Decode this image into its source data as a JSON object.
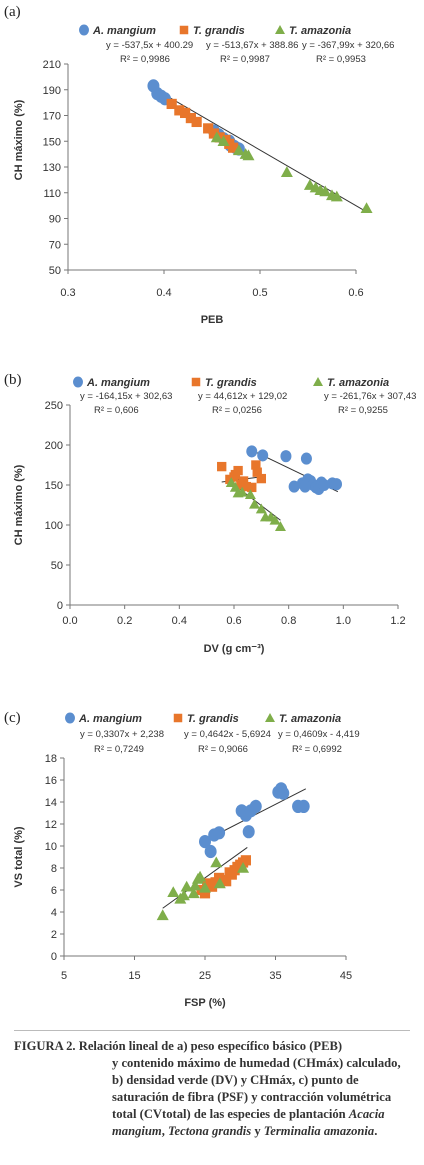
{
  "chart_data": [
    {
      "type": "scatter",
      "panel": "(a)",
      "xlabel": "PEB",
      "ylabel": "CH máximo (%)",
      "xlim": [
        0.3,
        0.6
      ],
      "ylim": [
        50,
        210
      ],
      "x_ticks": [
        "0.3",
        "0.4",
        "0.5",
        "0.6"
      ],
      "y_ticks": [
        "50",
        "70",
        "90",
        "110",
        "130",
        "150",
        "170",
        "190",
        "210"
      ],
      "legend": [
        {
          "name": "A. mangium",
          "equation": "y = -537,5x + 400.29",
          "r2": "R² = 0,9986"
        },
        {
          "name": "T. grandis",
          "equation": "y = -513,67x + 388.86",
          "r2": "R² = 0,9987"
        },
        {
          "name": "T. amazonia",
          "equation": "y = -367,99x + 320,66",
          "r2": "R² = 0,9953"
        }
      ],
      "series": [
        {
          "name": "A. mangium",
          "marker": "circle",
          "color": "#5b8ecf",
          "points": [
            [
              0.389,
              193
            ],
            [
              0.393,
              187
            ],
            [
              0.397,
              185
            ],
            [
              0.401,
              183
            ],
            [
              0.452,
              158
            ],
            [
              0.457,
              155
            ],
            [
              0.462,
              152
            ],
            [
              0.468,
              150
            ],
            [
              0.473,
              146
            ],
            [
              0.478,
              144
            ],
            [
              0.469,
              147
            ],
            [
              0.475,
              145
            ]
          ]
        },
        {
          "name": "T. grandis",
          "marker": "square",
          "color": "#e8762b",
          "points": [
            [
              0.408,
              179
            ],
            [
              0.416,
              174
            ],
            [
              0.422,
              172
            ],
            [
              0.428,
              168
            ],
            [
              0.434,
              165
            ],
            [
              0.446,
              160
            ],
            [
              0.452,
              156
            ],
            [
              0.458,
              153
            ],
            [
              0.464,
              151
            ],
            [
              0.468,
              148
            ],
            [
              0.472,
              145
            ]
          ]
        },
        {
          "name": "T. amazonia",
          "marker": "triangle",
          "color": "#7fae4a",
          "points": [
            [
              0.455,
              153
            ],
            [
              0.462,
              150
            ],
            [
              0.478,
              143
            ],
            [
              0.485,
              140
            ],
            [
              0.488,
              139
            ],
            [
              0.528,
              126
            ],
            [
              0.552,
              116
            ],
            [
              0.558,
              114
            ],
            [
              0.563,
              112
            ],
            [
              0.568,
              111
            ],
            [
              0.575,
              108
            ],
            [
              0.58,
              107
            ],
            [
              0.611,
              98
            ]
          ]
        }
      ],
      "trendline": {
        "x": [
          0.389,
          0.611
        ],
        "y": [
          191.2,
          95.2
        ]
      }
    },
    {
      "type": "scatter",
      "panel": "(b)",
      "xlabel": "DV (g cm⁻³)",
      "ylabel": "CH máximo (%)",
      "xlim": [
        0.0,
        1.2
      ],
      "ylim": [
        0,
        250
      ],
      "x_ticks": [
        "0.0",
        "0.2",
        "0.4",
        "0.6",
        "0.8",
        "1.0",
        "1.2"
      ],
      "y_ticks": [
        "0",
        "50",
        "100",
        "150",
        "200",
        "250"
      ],
      "legend": [
        {
          "name": "A. mangium",
          "equation": "y = -164,15x + 302,63",
          "r2": "R² = 0,606"
        },
        {
          "name": "T. grandis",
          "equation": "y = 44,612x + 129,02",
          "r2": "R² = 0,0256"
        },
        {
          "name": "T. amazonia",
          "equation": "y = -261,76x + 307,43",
          "r2": "R² = 0,9255"
        }
      ],
      "series": [
        {
          "name": "A. mangium",
          "marker": "circle",
          "color": "#5b8ecf",
          "points": [
            [
              0.665,
              192
            ],
            [
              0.705,
              187
            ],
            [
              0.79,
              186
            ],
            [
              0.865,
              183
            ],
            [
              0.82,
              148
            ],
            [
              0.85,
              152
            ],
            [
              0.87,
              157
            ],
            [
              0.88,
              155
            ],
            [
              0.89,
              150
            ],
            [
              0.9,
              147
            ],
            [
              0.91,
              145
            ],
            [
              0.92,
              153
            ],
            [
              0.96,
              152
            ],
            [
              0.975,
              151
            ],
            [
              0.86,
              148
            ],
            [
              0.93,
              150
            ]
          ]
        },
        {
          "name": "T. grandis",
          "marker": "square",
          "color": "#e8762b",
          "points": [
            [
              0.555,
              173
            ],
            [
              0.585,
              157
            ],
            [
              0.6,
              160
            ],
            [
              0.605,
              163
            ],
            [
              0.615,
              168
            ],
            [
              0.625,
              150
            ],
            [
              0.635,
              155
            ],
            [
              0.645,
              148
            ],
            [
              0.665,
              147
            ],
            [
              0.68,
              175
            ],
            [
              0.685,
              166
            ],
            [
              0.7,
              158
            ]
          ]
        },
        {
          "name": "T. amazonia",
          "marker": "triangle",
          "color": "#7fae4a",
          "points": [
            [
              0.59,
              153
            ],
            [
              0.605,
              147
            ],
            [
              0.615,
              140
            ],
            [
              0.63,
              141
            ],
            [
              0.66,
              138
            ],
            [
              0.675,
              126
            ],
            [
              0.7,
              120
            ],
            [
              0.715,
              110
            ],
            [
              0.735,
              110
            ],
            [
              0.75,
              106
            ],
            [
              0.77,
              98
            ]
          ]
        }
      ],
      "trendlines": [
        {
          "x": [
            0.66,
            0.98
          ],
          "y": [
            194.3,
            141.7
          ]
        },
        {
          "x": [
            0.555,
            0.7
          ],
          "y": [
            153.8,
            160.2
          ]
        },
        {
          "x": [
            0.59,
            0.77
          ],
          "y": [
            153.0,
            105.9
          ]
        }
      ]
    },
    {
      "type": "scatter",
      "panel": "(c)",
      "xlabel": "FSP (%)",
      "ylabel": "VS total (%)",
      "xlim": [
        5,
        45
      ],
      "ylim": [
        0,
        18
      ],
      "x_ticks": [
        "5",
        "15",
        "25",
        "35",
        "45"
      ],
      "y_ticks": [
        "0",
        "2",
        "4",
        "6",
        "8",
        "10",
        "12",
        "14",
        "16",
        "18"
      ],
      "legend": [
        {
          "name": "A. mangium",
          "equation": "y = 0,3307x + 2,238",
          "r2": "R² = 0,7249"
        },
        {
          "name": "T. grandis",
          "equation": "y = 0,4642x - 5,6924",
          "r2": "R² = 0,9066"
        },
        {
          "name": "T. amazonia",
          "equation": "y = 0,4609x - 4,419",
          "r2": "R² = 0,6992"
        }
      ],
      "series": [
        {
          "name": "A. mangium",
          "marker": "circle",
          "color": "#5b8ecf",
          "points": [
            [
              25,
              10.4
            ],
            [
              25.8,
              9.5
            ],
            [
              26.3,
              11
            ],
            [
              27,
              11.2
            ],
            [
              30.2,
              13.2
            ],
            [
              30.8,
              12.8
            ],
            [
              31.2,
              11.3
            ],
            [
              31.5,
              13.2
            ],
            [
              32.2,
              13.6
            ],
            [
              35.4,
              14.9
            ],
            [
              35.8,
              15.2
            ],
            [
              36.1,
              14.8
            ],
            [
              38.2,
              13.6
            ],
            [
              39,
              13.6
            ]
          ]
        },
        {
          "name": "T. grandis",
          "marker": "square",
          "color": "#e8762b",
          "points": [
            [
              24.5,
              6
            ],
            [
              25,
              5.7
            ],
            [
              25.3,
              6.6
            ],
            [
              26,
              6.3
            ],
            [
              26.5,
              6.7
            ],
            [
              27,
              7.1
            ],
            [
              27.5,
              6.9
            ],
            [
              28,
              6.8
            ],
            [
              28.5,
              7.6
            ],
            [
              28.8,
              7.4
            ],
            [
              29.2,
              7.8
            ],
            [
              29.6,
              8.1
            ],
            [
              30,
              8.3
            ],
            [
              30.4,
              8.5
            ],
            [
              30.8,
              8.7
            ]
          ]
        },
        {
          "name": "T. amazonia",
          "marker": "triangle",
          "color": "#7fae4a",
          "points": [
            [
              19,
              3.7
            ],
            [
              20.5,
              5.8
            ],
            [
              21.5,
              5.2
            ],
            [
              22,
              5.5
            ],
            [
              22.4,
              6.3
            ],
            [
              23.4,
              5.7
            ],
            [
              23.6,
              6.4
            ],
            [
              24,
              7
            ],
            [
              24.3,
              7.2
            ],
            [
              25,
              6.2
            ],
            [
              26.6,
              8.5
            ],
            [
              27.1,
              6.6
            ],
            [
              30.4,
              8
            ]
          ]
        }
      ],
      "trendlines": [
        {
          "x": [
            25,
            39.3
          ],
          "y": [
            10.5,
            15.2
          ]
        },
        {
          "x": [
            24.5,
            31
          ],
          "y": [
            5.68,
            8.7
          ]
        },
        {
          "x": [
            19,
            31
          ],
          "y": [
            4.34,
            9.87
          ]
        }
      ]
    }
  ],
  "caption": {
    "lead": "FIGURA 2.",
    "text_1": " Relación lineal de a) peso específico básico (PEB)",
    "text_2": "y contenido máximo de humedad (CHmáx) calculado, b) densidad verde (DV) y CHmáx, c) punto de saturación de fibra (PSF) y contracción volumétrica total (CVtotal) de las especies de plantación",
    "species_1": "Acacia mangium",
    "species_2": "Tectona grandis",
    "species_3": "Terminalia amazonia",
    "join_1": ", ",
    "join_2": " y ",
    "end": "."
  },
  "colors": {
    "mangium": "#5b8ecf",
    "grandis": "#e8762b",
    "amazonia": "#7fae4a",
    "trend": "#333333"
  }
}
